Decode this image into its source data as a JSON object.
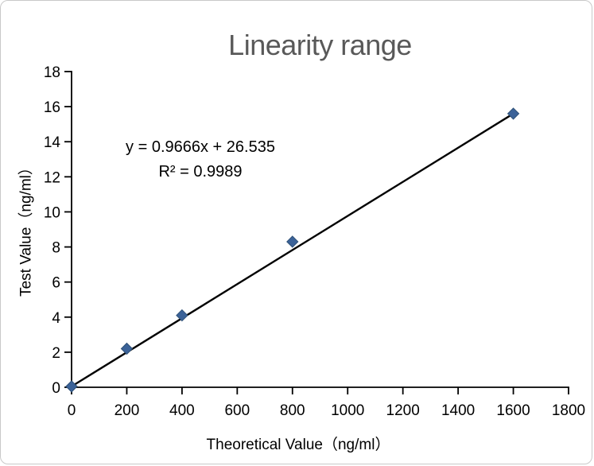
{
  "chart_data": {
    "type": "scatter",
    "title": "Linearity range",
    "xlabel": "Theoretical Value（ng/ml）",
    "ylabel": "Test Value（ng/ml）",
    "xlim": [
      0,
      1800
    ],
    "ylim": [
      0,
      18
    ],
    "x_ticks": [
      0,
      200,
      400,
      600,
      800,
      1000,
      1200,
      1400,
      1600,
      1800
    ],
    "y_ticks": [
      0,
      2,
      4,
      6,
      8,
      10,
      12,
      14,
      16,
      18
    ],
    "grid": false,
    "legend": "none",
    "points": [
      [
        0,
        0.05
      ],
      [
        200,
        2.2
      ],
      [
        400,
        4.1
      ],
      [
        800,
        8.3
      ],
      [
        1600,
        15.6
      ]
    ],
    "trendline": {
      "start": [
        0,
        0.05
      ],
      "end": [
        1600,
        15.6
      ]
    },
    "annotations": {
      "equation": "y = 0.9666x + 26.535",
      "r_squared": "R² = 0.9989"
    },
    "colors": {
      "marker": "#3b6298",
      "marker_border": "#2e5076",
      "trendline": "#000000",
      "axis": "#000000",
      "title": "#595959",
      "text": "#000000"
    }
  }
}
